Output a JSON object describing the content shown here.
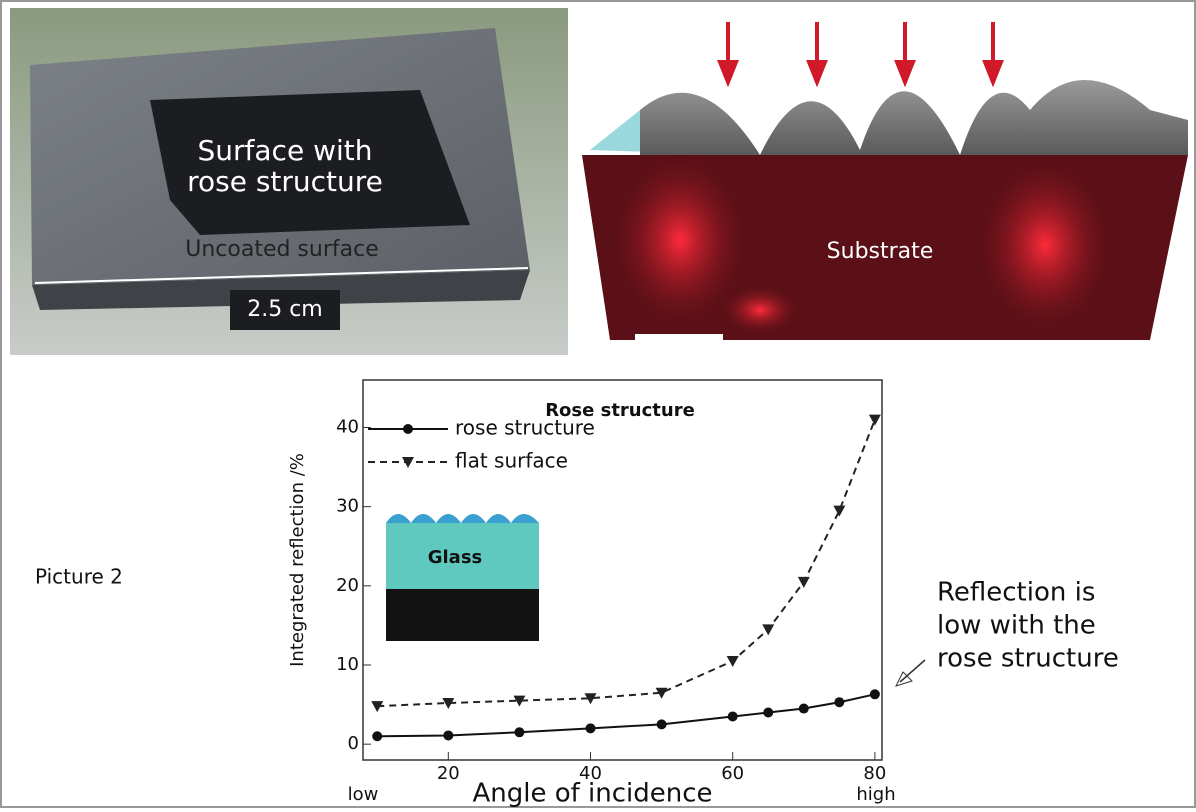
{
  "photos": {
    "left_label_lines": [
      "Surface with",
      "rose structure"
    ],
    "uncoated": "Uncoated surface",
    "width": "2.5 cm",
    "right_label": "Substrate"
  },
  "side_label": "Picture 2",
  "chart_data": {
    "type": "line",
    "title": "Rose structure",
    "x_label": "Angle of incidence",
    "y_label": "Integrated reflection /%",
    "x": [
      10,
      20,
      30,
      40,
      50,
      60,
      65,
      70,
      75,
      80
    ],
    "series": [
      {
        "name": "rose structure",
        "color": "#111111",
        "marker": "circle",
        "dash": false,
        "values": [
          1,
          1.1,
          1.5,
          2,
          2.5,
          3.5,
          4,
          4.5,
          5.3,
          6.3
        ]
      },
      {
        "name": "flat surface",
        "color": "#222222",
        "marker": "triangle",
        "dash": true,
        "values": [
          4.8,
          5.2,
          5.5,
          5.8,
          6.5,
          10.5,
          14.5,
          20.5,
          29.5,
          41
        ]
      }
    ],
    "xlim": [
      8,
      81
    ],
    "ylim": [
      -2,
      46
    ],
    "xticks": [
      20,
      40,
      60,
      80
    ],
    "yticks": [
      0,
      10,
      20,
      30,
      40
    ],
    "x_range_labels": [
      "low",
      "high"
    ],
    "inset_label": "Glass",
    "annotation_lines": [
      "Reflection is",
      "low with the",
      "rose structure"
    ]
  }
}
